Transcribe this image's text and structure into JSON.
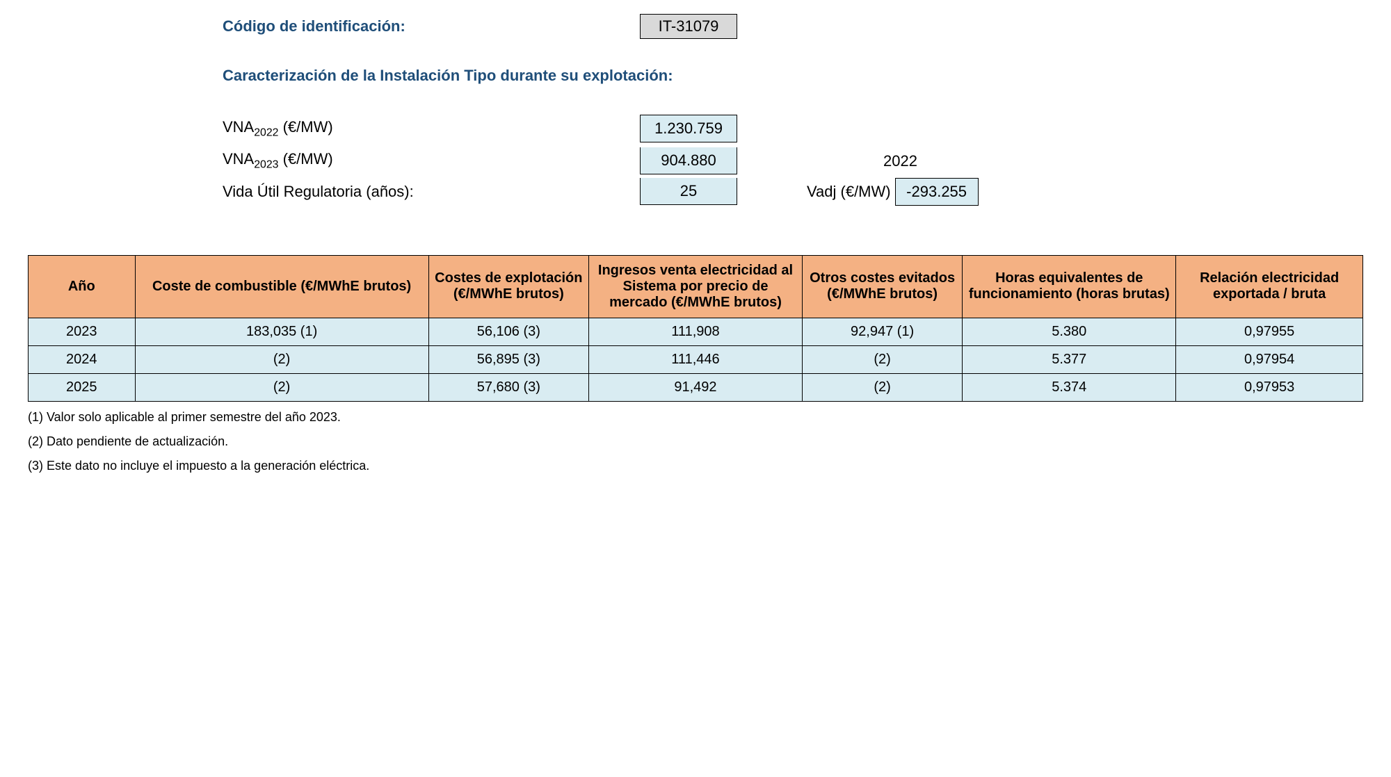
{
  "header": {
    "id_label": "Código de identificación:",
    "id_value": "IT-31079",
    "subtitle": "Caracterización de la Instalación Tipo durante su explotación:"
  },
  "params": {
    "vna2022_label_pre": "VNA",
    "vna2022_sub": "2022",
    "vna2022_label_post": " (€/MW)",
    "vna2022_value": "1.230.759",
    "vna2023_label_pre": "VNA",
    "vna2023_sub": "2023",
    "vna2023_label_post": " (€/MW)",
    "vna2023_value": "904.880",
    "year_ref": "2022",
    "vida_label": "Vida Útil Regulatoria (años):",
    "vida_value": "25",
    "vadj_label": "Vadj (€/MW)",
    "vadj_value": "-293.255"
  },
  "table": {
    "type": "table",
    "header_bg": "#f4b183",
    "row_bg": "#d9ecf2",
    "border_color": "#000000",
    "columns": [
      "Año",
      "Coste de combustible (€/MWhE brutos)",
      "Costes de explotación (€/MWhE brutos)",
      "Ingresos venta electricidad al Sistema por precio de mercado (€/MWhE brutos)",
      "Otros costes evitados (€/MWhE brutos)",
      "Horas equivalentes de funcionamiento (horas brutas)",
      "Relación electricidad exportada / bruta"
    ],
    "rows": [
      [
        "2023",
        "183,035 (1)",
        "56,106 (3)",
        "111,908",
        "92,947 (1)",
        "5.380",
        "0,97955"
      ],
      [
        "2024",
        "(2)",
        "56,895 (3)",
        "111,446",
        "(2)",
        "5.377",
        "0,97954"
      ],
      [
        "2025",
        "(2)",
        "57,680 (3)",
        "91,492",
        "(2)",
        "5.374",
        "0,97953"
      ]
    ]
  },
  "footnotes": {
    "n1": "(1) Valor solo aplicable al primer semestre del año 2023.",
    "n2": "(2) Dato pendiente de actualización.",
    "n3": "(3) Este dato no incluye el impuesto a la generación eléctrica."
  },
  "colors": {
    "heading": "#1f4e79",
    "code_bg": "#d9d9d9",
    "param_bg": "#d9ecf2"
  }
}
